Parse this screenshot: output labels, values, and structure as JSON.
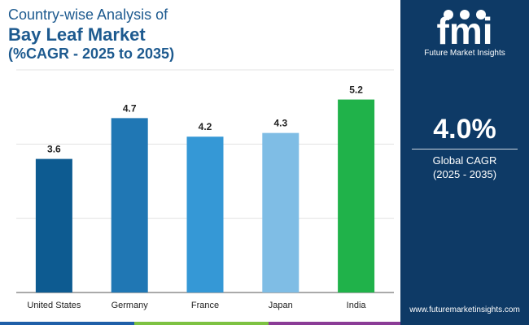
{
  "title": {
    "line1": "Country-wise Analysis of",
    "line2": "Bay Leaf Market",
    "line3": "(%CAGR - 2025 to 2035)"
  },
  "chart_data": {
    "type": "bar",
    "categories": [
      "United States",
      "Germany",
      "France",
      "Japan",
      "India"
    ],
    "values": [
      3.6,
      4.7,
      4.2,
      4.3,
      5.2
    ],
    "bar_colors": [
      "#0d5b91",
      "#2077b4",
      "#3598d6",
      "#7fbde5",
      "#20b24a"
    ],
    "ylim": [
      0,
      6
    ],
    "grid": true,
    "legend": "none"
  },
  "summary": {
    "cagr_value": "4.0%",
    "cagr_label": "Global CAGR",
    "cagr_period": "(2025 - 2035)"
  },
  "brand": {
    "logo_text": "fmi",
    "company_name": "Future Market Insights",
    "website": "www.futuremarketinsights.com"
  },
  "colors": {
    "panel": "#0e3a66",
    "title": "#1d5a8f",
    "stripe": [
      "#1f5fa8",
      "#7dc242",
      "#8b3c96"
    ]
  }
}
